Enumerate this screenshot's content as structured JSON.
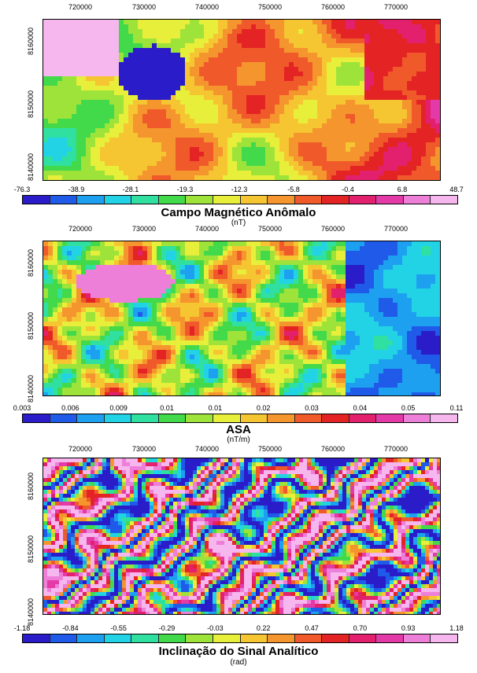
{
  "x_ticks": [
    "720000",
    "730000",
    "740000",
    "750000",
    "760000",
    "770000"
  ],
  "y_ticks": [
    "8160000",
    "8150000",
    "8140000"
  ],
  "colors": [
    "#2a1cc8",
    "#1f5be8",
    "#1ea0f0",
    "#22d3e6",
    "#2fe0a0",
    "#42d94a",
    "#9ee33a",
    "#e8ef3a",
    "#f6c532",
    "#f5952e",
    "#f05a2a",
    "#e42424",
    "#e3206e",
    "#e43aa8",
    "#ee7fd8",
    "#f6b6ee"
  ],
  "maps": [
    {
      "title": "Campo Magnético Anômalo",
      "unit": "(nT)",
      "scale_labels": [
        "-76.3",
        "-38.9",
        "-28.1",
        "-19.3",
        "-12.3",
        "-5.8",
        "-0.4",
        "6.8",
        "48.7"
      ]
    },
    {
      "title": "ASA",
      "unit": "(nT/m)",
      "scale_labels": [
        "0.003",
        "0.006",
        "0.009",
        "0.01",
        "0.01",
        "0.02",
        "0.03",
        "0.04",
        "0.05",
        "0.11"
      ]
    },
    {
      "title": "Inclinação do Sinal Analítico",
      "unit": "(rad)",
      "scale_labels": [
        "-1.18",
        "-0.84",
        "-0.55",
        "-0.29",
        "-0.03",
        "0.22",
        "0.47",
        "0.70",
        "0.93",
        "1.18"
      ]
    }
  ]
}
